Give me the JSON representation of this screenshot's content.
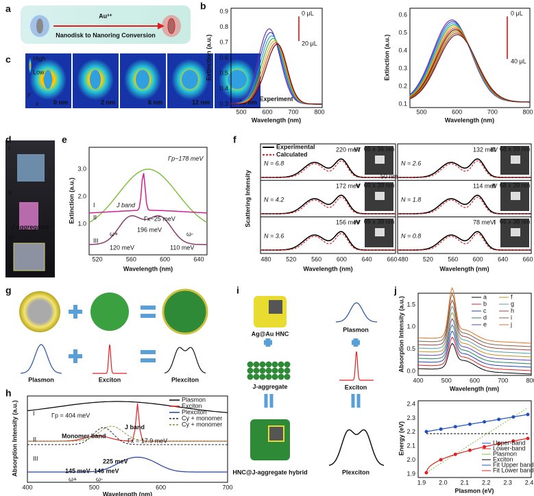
{
  "a": {
    "label": "a",
    "ion": "Au³⁺",
    "caption": "Nanodisk to Nanoring Conversion"
  },
  "b": {
    "label": "b",
    "ylabel": "Extinction (a.u.)",
    "xlabel": "Wavelength (nm)",
    "note": "Experiment",
    "legend1": [
      "0 μL",
      "20 μL"
    ],
    "legend2": [
      "0 μL",
      "40 μL"
    ],
    "yticks1": [
      "0.3",
      "0.4",
      "0.5",
      "0.6",
      "0.7",
      "0.8",
      "0.9"
    ],
    "xticks": [
      "500",
      "600",
      "700",
      "800"
    ],
    "yticks2": [
      "0.1",
      "0.2",
      "0.3",
      "0.4",
      "0.5",
      "0.6"
    ]
  },
  "c": {
    "label": "c",
    "high": "High",
    "low": "Low",
    "yaxis": "y",
    "xaxis": "x",
    "frames": [
      "0 nm",
      "2 nm",
      "6 nm",
      "12 nm",
      "18 nm"
    ]
  },
  "d": {
    "label": "d",
    "stages": [
      "I",
      "II",
      "III"
    ],
    "note": "J aggregates"
  },
  "e": {
    "label": "e",
    "ylabel": "Extinction (a.u.)",
    "xlabel": "Wavelength (nm)",
    "xticks": [
      "520",
      "560",
      "600",
      "640"
    ],
    "yticks": [
      "1.0",
      "2.0",
      "3.0"
    ],
    "gp": "Γp~178 meV",
    "gx": "Γx~25 meV",
    "jband": "J band",
    "curves": [
      "I",
      "II",
      "III"
    ],
    "split": "196 meV",
    "wp": "ω+",
    "wm": "ω-",
    "left": "120 meV",
    "right": "110 meV"
  },
  "f": {
    "label": "f",
    "legend": [
      "Experimental",
      "Calculated"
    ],
    "ylabel": "Scattering Intensity",
    "xlabel": "Wavelength (nm)",
    "xticks": [
      "480",
      "520",
      "560",
      "600",
      "640",
      "660"
    ],
    "rows": [
      {
        "e": "220 meV",
        "r": "VI",
        "n": "N = 6.8",
        "s": "65 x 36 nm"
      },
      {
        "e": "172 meV",
        "r": "V",
        "n": "N = 4.2",
        "s": "69 x 39 nm"
      },
      {
        "e": "156 meV",
        "r": "IV",
        "n": "N = 3.6",
        "s": "69 x 39 nm"
      },
      {
        "e": "132 meV",
        "r": "III",
        "n": "N = 2.6",
        "s": "68 x 39 nm"
      },
      {
        "e": "114 meV",
        "r": "II",
        "n": "N = 1.8",
        "s": "68 x 39 nm"
      },
      {
        "e": "78 meV",
        "r": "I",
        "n": "N = 0.8",
        "s": "66 x 38 nm"
      }
    ],
    "scale": "50 nm"
  },
  "g": {
    "label": "g",
    "names": [
      "Plasmon",
      "Exciton",
      "Plexciton"
    ]
  },
  "h": {
    "label": "h",
    "legend": [
      "Plasmon",
      "Exciton",
      "Plexciton",
      "Cy + monomer",
      "Cy + monomer"
    ],
    "curves": [
      "I",
      "II",
      "III"
    ],
    "gp": "Γp = 404 meV",
    "jband": "J band",
    "gx": "Γx = 17.9 meV",
    "mono": "Monomer band",
    "split": "225 meV",
    "left": "145 meV",
    "right": "146 meV",
    "wp": "ω+",
    "wm": "ω-",
    "ylabel": "Absorption Intensity (a.u.)",
    "xlabel": "Wavelength (nm)",
    "xticks": [
      "400",
      "500",
      "600",
      "700"
    ]
  },
  "i": {
    "label": "i",
    "items": [
      "Ag@Au HNC",
      "Plasmon",
      "J-aggregate",
      "Exciton",
      "HNC@J-aggregate hybrid",
      "Plexciton"
    ]
  },
  "j": {
    "label": "j",
    "legend": [
      "a",
      "b",
      "c",
      "d",
      "e",
      "f",
      "g",
      "h",
      "i",
      "j"
    ],
    "ylabel": "Absorption Intensity (a.u.)",
    "xlabel": "Wavelength (nm)",
    "yticks": [
      "0.0",
      "0.5",
      "1.0",
      "1.5"
    ],
    "xticks": [
      "400",
      "500",
      "600",
      "700",
      "800"
    ],
    "ylabel2": "Energy (eV)",
    "xlabel2": "Plasmon (eV)",
    "yticks2": [
      "1.9",
      "2.0",
      "2.1",
      "2.2",
      "2.3",
      "2.4"
    ],
    "xticks2": [
      "1.9",
      "2.0",
      "2.1",
      "2.2",
      "2.3",
      "2.4"
    ],
    "legend2": [
      "Upper-band",
      "Lower-band",
      "Plasmon",
      "Exciton",
      "Fit Upper band",
      "Fit Lower band"
    ]
  }
}
